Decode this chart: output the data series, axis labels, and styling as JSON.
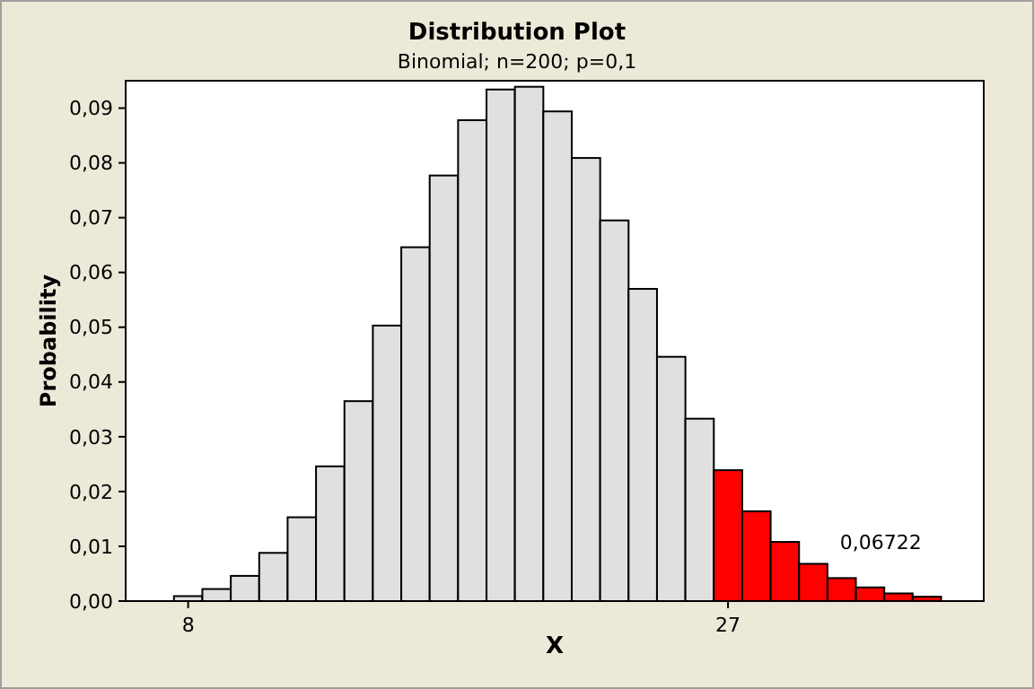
{
  "chart_data": {
    "type": "histogram",
    "title": "Distribution Plot",
    "subtitle": "Binomial; n=200; p=0,1",
    "xlabel": "X",
    "ylabel": "Probability",
    "bins": [
      7.5,
      8.5,
      9.5,
      10.5,
      11.5,
      12.5,
      13.5,
      14.5,
      15.5,
      16.5,
      17.5,
      18.5,
      19.5,
      20.5,
      21.5,
      22.5,
      23.5,
      24.5,
      25.5,
      26.5,
      27.5,
      28.5,
      29.5,
      30.5,
      31.5,
      32.5,
      33.5,
      34.5
    ],
    "values": [
      0.0009,
      0.0022,
      0.0046,
      0.0088,
      0.0153,
      0.0246,
      0.0365,
      0.0503,
      0.0646,
      0.0777,
      0.0878,
      0.0934,
      0.0939,
      0.0894,
      0.0809,
      0.0695,
      0.057,
      0.0446,
      0.0333,
      0.0239,
      0.0164,
      0.0108,
      0.0068,
      0.0042,
      0.0025,
      0.0014,
      0.0008
    ],
    "colors": [
      "#e0e0e0",
      "#e0e0e0",
      "#e0e0e0",
      "#e0e0e0",
      "#e0e0e0",
      "#e0e0e0",
      "#e0e0e0",
      "#e0e0e0",
      "#e0e0e0",
      "#e0e0e0",
      "#e0e0e0",
      "#e0e0e0",
      "#e0e0e0",
      "#e0e0e0",
      "#e0e0e0",
      "#e0e0e0",
      "#e0e0e0",
      "#e0e0e0",
      "#e0e0e0",
      "#ff0000",
      "#ff0000",
      "#ff0000",
      "#ff0000",
      "#ff0000",
      "#ff0000",
      "#ff0000",
      "#ff0000"
    ],
    "xlim": [
      5.8,
      36
    ],
    "xticks": [
      8,
      27
    ],
    "ylim": [
      0,
      0.095
    ],
    "yticks": [
      {
        "value": 0,
        "label": "0,00"
      },
      {
        "value": 0.01,
        "label": "0,01"
      },
      {
        "value": 0.02,
        "label": "0,02"
      },
      {
        "value": 0.03,
        "label": "0,03"
      },
      {
        "value": 0.04,
        "label": "0,04"
      },
      {
        "value": 0.05,
        "label": "0,05"
      },
      {
        "value": 0.06,
        "label": "0,06"
      },
      {
        "value": 0.07,
        "label": "0,07"
      },
      {
        "value": 0.08,
        "label": "0,08"
      },
      {
        "value": 0.09,
        "label": "0,09"
      }
    ],
    "annotations": [
      "0,06722"
    ]
  }
}
